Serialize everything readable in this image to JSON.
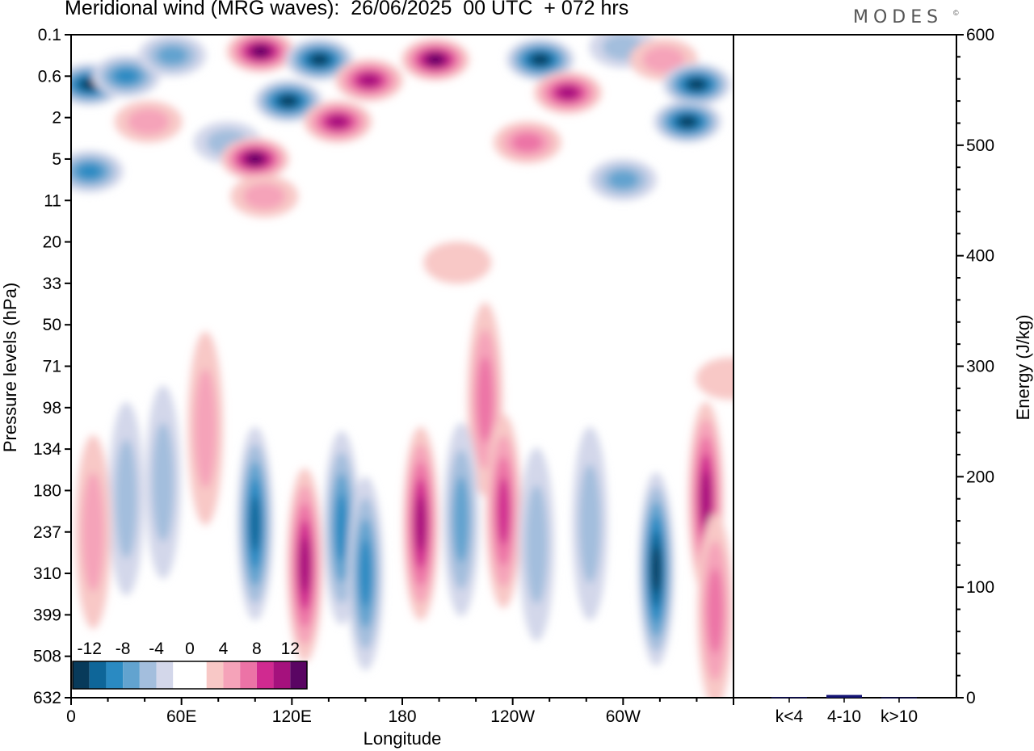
{
  "title": "Meridional wind (MRG waves):  26/06/2025  00 UTC  + 072 hrs",
  "brand": "MODES",
  "brand_mark": "©",
  "colors": {
    "neg_12": "#083a5a",
    "neg_10": "#0e6699",
    "neg_8": "#2a8ac2",
    "neg_6": "#62a3cf",
    "neg_4": "#a3bedd",
    "neg_2": "#d3d7ea",
    "zero": "#ffffff",
    "pos_2": "#f8c8c6",
    "pos_4": "#f5a3b9",
    "pos_6": "#ec73a6",
    "pos_8": "#d02a90",
    "pos_10": "#a5117d",
    "pos_12": "#5a0563",
    "energy_bar": "#151575"
  },
  "chart_data": [
    {
      "type": "heatmap",
      "title": "Meridional wind (MRG waves):  26/06/2025  00 UTC  + 072 hrs",
      "xlabel": "Longitude",
      "ylabel": "Pressure levels (hPa)",
      "x_ticks": [
        "0",
        "60E",
        "120E",
        "180",
        "120W",
        "60W"
      ],
      "x_tick_values": [
        0,
        60,
        120,
        180,
        240,
        300
      ],
      "xlim": [
        0,
        360
      ],
      "y_ticks": [
        "0.1",
        "0.6",
        "2",
        "5",
        "11",
        "20",
        "33",
        "50",
        "71",
        "98",
        "134",
        "180",
        "237",
        "310",
        "399",
        "508",
        "632"
      ],
      "colorbar": {
        "labels": [
          "-12",
          "-8",
          "-4",
          "0",
          "4",
          "8",
          "12"
        ],
        "levels": [
          -14,
          -12,
          -10,
          -8,
          -6,
          -4,
          -2,
          2,
          4,
          6,
          8,
          10,
          12,
          14
        ]
      },
      "features": [
        {
          "lon": 10,
          "level": 1.2,
          "value": -13
        },
        {
          "lon": 30,
          "level": 1.0,
          "value": -8
        },
        {
          "lon": 55,
          "level": 0.5,
          "value": -6
        },
        {
          "lon": 42,
          "level": 2.1,
          "value": 4
        },
        {
          "lon": 85,
          "level": 2.6,
          "value": -4
        },
        {
          "lon": 10,
          "level": 3.3,
          "value": -9
        },
        {
          "lon": 103,
          "level": 0.4,
          "value": 13
        },
        {
          "lon": 135,
          "level": 0.6,
          "value": -13
        },
        {
          "lon": 118,
          "level": 1.6,
          "value": -12
        },
        {
          "lon": 100,
          "level": 3.0,
          "value": 12
        },
        {
          "lon": 145,
          "level": 2.1,
          "value": 10
        },
        {
          "lon": 105,
          "level": 3.9,
          "value": 4
        },
        {
          "lon": 162,
          "level": 1.1,
          "value": 10
        },
        {
          "lon": 198,
          "level": 0.6,
          "value": 14
        },
        {
          "lon": 255,
          "level": 0.6,
          "value": -13
        },
        {
          "lon": 270,
          "level": 1.4,
          "value": 10
        },
        {
          "lon": 248,
          "level": 2.6,
          "value": 6
        },
        {
          "lon": 300,
          "level": 0.3,
          "value": -5
        },
        {
          "lon": 322,
          "level": 0.6,
          "value": 5
        },
        {
          "lon": 340,
          "level": 1.2,
          "value": -13
        },
        {
          "lon": 335,
          "level": 2.1,
          "value": -12
        },
        {
          "lon": 300,
          "level": 3.5,
          "value": -6
        },
        {
          "lon": 210,
          "level": 5.5,
          "value": 3
        },
        {
          "lon": 225,
          "level": 8.8,
          "value": 6
        },
        {
          "lon": 73,
          "level": 9.5,
          "value": 5
        },
        {
          "lon": 50,
          "level": 10.8,
          "value": -4
        },
        {
          "lon": 30,
          "level": 11.2,
          "value": -4
        },
        {
          "lon": 12,
          "level": 12.0,
          "value": 5
        },
        {
          "lon": 100,
          "level": 11.8,
          "value": -10
        },
        {
          "lon": 127,
          "level": 12.8,
          "value": 10
        },
        {
          "lon": 147,
          "level": 11.9,
          "value": -8
        },
        {
          "lon": 160,
          "level": 13.0,
          "value": -8
        },
        {
          "lon": 190,
          "level": 11.8,
          "value": 10
        },
        {
          "lon": 212,
          "level": 11.7,
          "value": -6
        },
        {
          "lon": 235,
          "level": 11.5,
          "value": 9
        },
        {
          "lon": 253,
          "level": 12.3,
          "value": -4
        },
        {
          "lon": 282,
          "level": 11.8,
          "value": -4
        },
        {
          "lon": 318,
          "level": 12.9,
          "value": -12
        },
        {
          "lon": 345,
          "level": 11.2,
          "value": 10
        },
        {
          "lon": 350,
          "level": 13.9,
          "value": 7
        },
        {
          "lon": 358,
          "level": 8.3,
          "value": 3
        }
      ]
    },
    {
      "type": "bar",
      "ylabel": "Energy (J/kg)",
      "ylim": [
        0,
        600
      ],
      "y_ticks": [
        0,
        100,
        200,
        300,
        400,
        500,
        600
      ],
      "categories": [
        "k<4",
        "4-10",
        "k>10"
      ],
      "values": [
        0.5,
        2.5,
        0.3
      ]
    }
  ]
}
